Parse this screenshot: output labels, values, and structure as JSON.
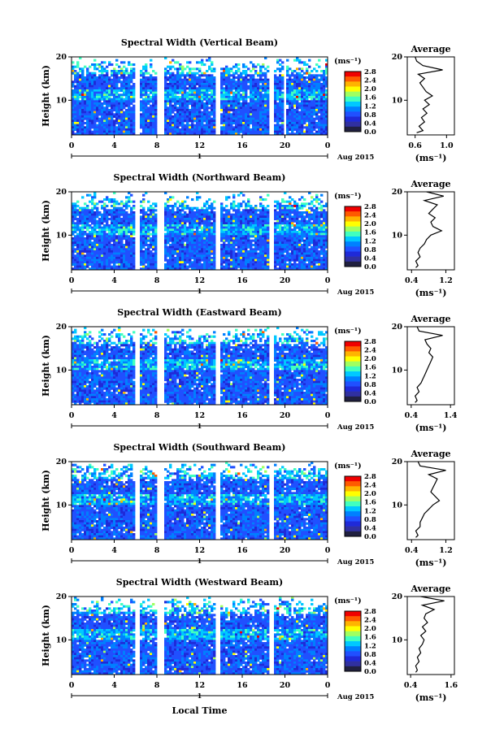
{
  "figure": {
    "xlabel": "Local Time",
    "date_label": "Aug 2015",
    "day_marker": "1",
    "ylabel": "Height (km)",
    "avg_title": "Average",
    "unit_label": "(ms⁻¹)"
  },
  "colorbar": {
    "ticks": [
      "2.8",
      "2.4",
      "2.0",
      "1.6",
      "1.2",
      "0.8",
      "0.4",
      "0.0"
    ],
    "values": [
      2.8,
      2.4,
      2.0,
      1.6,
      1.2,
      0.8,
      0.4,
      0.0
    ],
    "colors": [
      "#f00000",
      "#ff5a00",
      "#ffb400",
      "#ffff00",
      "#a0ff60",
      "#40ffc0",
      "#00c8ff",
      "#0080ff",
      "#2050ff",
      "#1f2ad8",
      "#3030a0",
      "#202040"
    ]
  },
  "chart_data": [
    {
      "type": "heatmap",
      "title": "Spectral Width (Vertical Beam)",
      "x_ticks": [
        "0",
        "4",
        "8",
        "12",
        "16",
        "20",
        "0"
      ],
      "x_range": [
        0,
        24
      ],
      "y_ticks": [
        "20",
        "10"
      ],
      "y_range": [
        2,
        20
      ],
      "gaps_hours": [
        [
          5.9,
          6.3
        ],
        [
          8.0,
          8.6
        ],
        [
          13.6,
          14.0
        ],
        [
          18.5,
          19.0
        ],
        [
          19.9,
          20.1
        ]
      ],
      "average": {
        "title": "Average",
        "x_ticks": [
          "0.6",
          "1.0"
        ],
        "x_range": [
          0.5,
          1.1
        ],
        "profile_heights_km": [
          2.5,
          3,
          4,
          5,
          6,
          7,
          8,
          9,
          10,
          11,
          12,
          13,
          14,
          15,
          16,
          17,
          18,
          19,
          20
        ],
        "profile_values": [
          0.62,
          0.7,
          0.65,
          0.72,
          0.68,
          0.75,
          0.7,
          0.78,
          0.72,
          0.82,
          0.74,
          0.7,
          0.66,
          0.72,
          0.64,
          0.95,
          0.7,
          0.62,
          0.6
        ]
      }
    },
    {
      "type": "heatmap",
      "title": "Spectral Width (Northward Beam)",
      "x_ticks": [
        "0",
        "4",
        "8",
        "12",
        "16",
        "20",
        "0"
      ],
      "x_range": [
        0,
        24
      ],
      "y_ticks": [
        "20",
        "10"
      ],
      "y_range": [
        2,
        20
      ],
      "gaps_hours": [
        [
          5.9,
          6.3
        ],
        [
          8.0,
          8.6
        ],
        [
          13.6,
          14.0
        ],
        [
          18.5,
          19.0
        ]
      ],
      "average": {
        "title": "Average",
        "x_ticks": [
          "0.4",
          "1.2"
        ],
        "x_range": [
          0.3,
          1.4
        ],
        "profile_heights_km": [
          2.5,
          3,
          4,
          5,
          6,
          7,
          8,
          9,
          10,
          11,
          12,
          13,
          14,
          15,
          16,
          17,
          18,
          19,
          20
        ],
        "profile_values": [
          0.5,
          0.55,
          0.5,
          0.6,
          0.55,
          0.6,
          0.7,
          0.75,
          0.85,
          1.1,
          0.9,
          0.85,
          0.95,
          0.8,
          0.9,
          1.0,
          0.7,
          1.15,
          0.75
        ]
      }
    },
    {
      "type": "heatmap",
      "title": "Spectral Width (Eastward Beam)",
      "x_ticks": [
        "0",
        "4",
        "8",
        "12",
        "16",
        "20",
        "0"
      ],
      "x_range": [
        0,
        24
      ],
      "y_ticks": [
        "20",
        "10"
      ],
      "y_range": [
        2,
        20
      ],
      "gaps_hours": [
        [
          5.9,
          6.3
        ],
        [
          8.0,
          8.6
        ],
        [
          13.6,
          14.0
        ],
        [
          18.5,
          19.0
        ]
      ],
      "average": {
        "title": "Average",
        "x_ticks": [
          "0.4",
          "1.4"
        ],
        "x_range": [
          0.3,
          1.5
        ],
        "profile_heights_km": [
          2.5,
          3,
          4,
          5,
          6,
          7,
          8,
          9,
          10,
          11,
          12,
          13,
          14,
          15,
          16,
          17,
          18,
          19,
          20
        ],
        "profile_values": [
          0.5,
          0.55,
          0.5,
          0.6,
          0.55,
          0.65,
          0.7,
          0.75,
          0.8,
          0.85,
          0.9,
          0.95,
          0.85,
          0.9,
          0.8,
          0.75,
          1.2,
          0.6,
          0.55
        ]
      }
    },
    {
      "type": "heatmap",
      "title": "Spectral Width (Southward Beam)",
      "x_ticks": [
        "0",
        "4",
        "8",
        "12",
        "16",
        "20",
        "0"
      ],
      "x_range": [
        0,
        24
      ],
      "y_ticks": [
        "20",
        "10"
      ],
      "y_range": [
        2,
        20
      ],
      "gaps_hours": [
        [
          5.9,
          6.3
        ],
        [
          8.0,
          8.6
        ],
        [
          13.6,
          14.0
        ],
        [
          18.5,
          19.0
        ]
      ],
      "average": {
        "title": "Average",
        "x_ticks": [
          "0.4",
          "1.2"
        ],
        "x_range": [
          0.3,
          1.4
        ],
        "profile_heights_km": [
          2.5,
          3,
          4,
          5,
          6,
          7,
          8,
          9,
          10,
          11,
          12,
          13,
          14,
          15,
          16,
          17,
          18,
          19,
          20
        ],
        "profile_values": [
          0.5,
          0.55,
          0.5,
          0.6,
          0.6,
          0.65,
          0.7,
          0.8,
          0.9,
          1.05,
          0.95,
          0.85,
          0.9,
          0.95,
          1.0,
          0.8,
          1.2,
          0.6,
          0.55
        ]
      }
    },
    {
      "type": "heatmap",
      "title": "Spectral Width (Westward Beam)",
      "x_ticks": [
        "0",
        "4",
        "8",
        "12",
        "16",
        "20",
        "0"
      ],
      "x_range": [
        0,
        24
      ],
      "y_ticks": [
        "20",
        "10"
      ],
      "y_range": [
        2,
        20
      ],
      "gaps_hours": [
        [
          5.9,
          6.3
        ],
        [
          8.0,
          8.6
        ],
        [
          13.6,
          14.0
        ],
        [
          18.5,
          19.0
        ]
      ],
      "average": {
        "title": "Average",
        "x_ticks": [
          "0.4",
          "1.6"
        ],
        "x_range": [
          0.3,
          1.7
        ],
        "profile_heights_km": [
          2.5,
          3,
          4,
          5,
          6,
          7,
          8,
          9,
          10,
          11,
          12,
          13,
          14,
          15,
          16,
          17,
          18,
          19,
          20
        ],
        "profile_values": [
          0.55,
          0.6,
          0.55,
          0.65,
          0.6,
          0.7,
          0.65,
          0.75,
          0.8,
          0.7,
          0.85,
          0.75,
          0.9,
          0.8,
          0.85,
          1.1,
          0.75,
          1.4,
          0.7
        ]
      }
    }
  ]
}
